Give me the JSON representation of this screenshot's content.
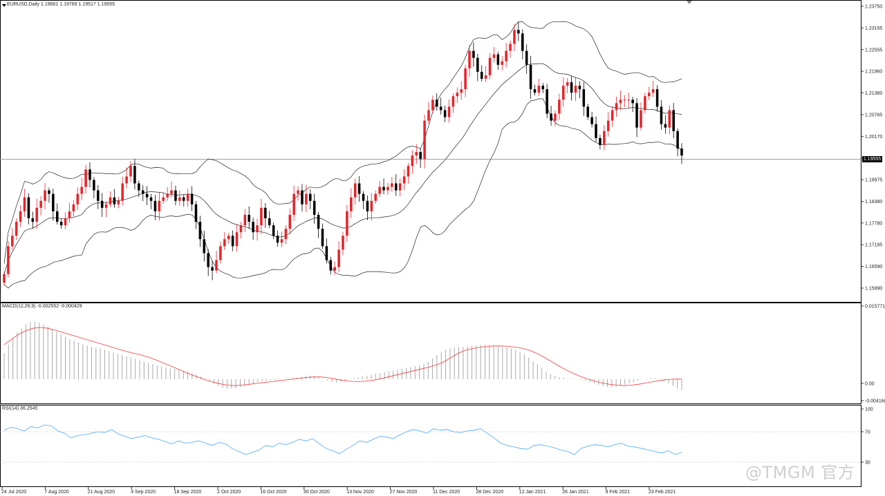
{
  "chart_data": {
    "type": "candlestick",
    "symbol_header": "EURUSD,Daily  1.19661 1.19769 1.19517 1.19555",
    "current_price": "1.19555",
    "price_axis_ticks": [
      "1.23750",
      "1.23155",
      "1.22555",
      "1.21960",
      "1.21360",
      "1.20765",
      "1.20170",
      "1.19575",
      "1.18975",
      "1.18380",
      "1.17780",
      "1.17185",
      "1.16590",
      "1.15990"
    ],
    "ylim": [
      1.157,
      1.239
    ],
    "date_labels": [
      "24 Jul 2020",
      "7 Aug 2020",
      "21 Aug 2020",
      "4 Sep 2020",
      "18 Sep 2020",
      "2 Oct 2020",
      "16 Oct 2020",
      "30 Oct 2020",
      "13 Nov 2020",
      "27 Nov 2020",
      "11 Dec 2020",
      "28 Dec 2020",
      "12 Jan 2021",
      "26 Jan 2021",
      "9 Feb 2021",
      "23 Feb 2021"
    ],
    "close": [
      1.162,
      1.17,
      1.173,
      1.177,
      1.18,
      1.184,
      1.178,
      1.177,
      1.181,
      1.183,
      1.186,
      1.185,
      1.18,
      1.177,
      1.176,
      1.178,
      1.18,
      1.182,
      1.185,
      1.187,
      1.192,
      1.189,
      1.186,
      1.183,
      1.181,
      1.182,
      1.184,
      1.182,
      1.183,
      1.188,
      1.19,
      1.193,
      1.188,
      1.186,
      1.185,
      1.184,
      1.183,
      1.18,
      1.183,
      1.184,
      1.185,
      1.186,
      1.183,
      1.184,
      1.183,
      1.185,
      1.182,
      1.177,
      1.172,
      1.168,
      1.164,
      1.163,
      1.166,
      1.17,
      1.172,
      1.173,
      1.17,
      1.174,
      1.176,
      1.179,
      1.177,
      1.174,
      1.176,
      1.181,
      1.178,
      1.176,
      1.173,
      1.171,
      1.172,
      1.175,
      1.179,
      1.185,
      1.186,
      1.182,
      1.185,
      1.183,
      1.179,
      1.175,
      1.17,
      1.166,
      1.163,
      1.164,
      1.169,
      1.173,
      1.18,
      1.184,
      1.188,
      1.185,
      1.183,
      1.18,
      1.183,
      1.185,
      1.187,
      1.186,
      1.187,
      1.188,
      1.186,
      1.188,
      1.19,
      1.193,
      1.196,
      1.197,
      1.195,
      1.206,
      1.209,
      1.212,
      1.21,
      1.209,
      1.207,
      1.21,
      1.213,
      1.214,
      1.215,
      1.221,
      1.226,
      1.224,
      1.22,
      1.218,
      1.219,
      1.224,
      1.225,
      1.222,
      1.223,
      1.226,
      1.228,
      1.232,
      1.231,
      1.226,
      1.222,
      1.215,
      1.214,
      1.216,
      1.215,
      1.208,
      1.206,
      1.208,
      1.212,
      1.216,
      1.217,
      1.214,
      1.216,
      1.215,
      1.21,
      1.207,
      1.205,
      1.201,
      1.199,
      1.203,
      1.206,
      1.209,
      1.211,
      1.212,
      1.212,
      1.212,
      1.211,
      1.204,
      1.209,
      1.213,
      1.214,
      1.215,
      1.21,
      1.205,
      1.204,
      1.209,
      1.203,
      1.198,
      1.196
    ]
  },
  "macd": {
    "label": "MACD(12,26,9) -0.002552 -0.000429",
    "ticks": [
      "0.015771",
      "0.00",
      "-0.004168"
    ],
    "range": [
      -0.005,
      0.0168
    ],
    "hist": [
      0.006,
      0.008,
      0.0095,
      0.0108,
      0.0118,
      0.0128,
      0.0132,
      0.0133,
      0.0131,
      0.0127,
      0.0122,
      0.0116,
      0.011,
      0.0104,
      0.0098,
      0.0093,
      0.0089,
      0.0085,
      0.0081,
      0.0078,
      0.0075,
      0.0073,
      0.0071,
      0.0068,
      0.0065,
      0.0062,
      0.0059,
      0.0056,
      0.0053,
      0.005,
      0.0047,
      0.0044,
      0.0041,
      0.0038,
      0.0035,
      0.0032,
      0.0029,
      0.0027,
      0.0025,
      0.0023,
      0.0021,
      0.0019,
      0.0017,
      0.0014,
      0.001,
      0.0006,
      0.0002,
      -0.0004,
      -0.001,
      -0.0016,
      -0.002,
      -0.0022,
      -0.0022,
      -0.0021,
      -0.0019,
      -0.0016,
      -0.0013,
      -0.001,
      -0.0007,
      -0.0005,
      -0.0004,
      -0.0003,
      -0.0002,
      -0.0001,
      0.0,
      0.0001,
      0.0002,
      0.0004,
      0.0006,
      0.0007,
      0.0008,
      0.0007,
      0.0004,
      0.0,
      -0.0004,
      -0.0007,
      -0.0008,
      -0.0007,
      -0.0004,
      -0.0001,
      0.0002,
      0.0004,
      0.0006,
      0.0008,
      0.001,
      0.0012,
      0.0014,
      0.0016,
      0.0018,
      0.002,
      0.0022,
      0.0024,
      0.0026,
      0.0028,
      0.003,
      0.0032,
      0.0035,
      0.004,
      0.0048,
      0.0056,
      0.0063,
      0.0068,
      0.0071,
      0.0073,
      0.0074,
      0.0075,
      0.0076,
      0.0077,
      0.0078,
      0.0079,
      0.0079,
      0.0078,
      0.0077,
      0.0076,
      0.0075,
      0.0073,
      0.0071,
      0.0068,
      0.0064,
      0.0058,
      0.005,
      0.0042,
      0.0034,
      0.0026,
      0.0018,
      0.0012,
      0.0008,
      0.0005,
      0.0003,
      0.0002,
      0.0001,
      0.0,
      -0.0002,
      -0.0004,
      -0.0007,
      -0.001,
      -0.0013,
      -0.0016,
      -0.0018,
      -0.0019,
      -0.0018,
      -0.0016,
      -0.0013,
      -0.001,
      -0.0007,
      -0.0004,
      -0.0001,
      0.0001,
      0.0003,
      0.0002,
      -0.0001,
      -0.0005,
      -0.001,
      -0.0016,
      -0.0022,
      -0.0026
    ],
    "signal": [
      0.008,
      0.0092,
      0.0104,
      0.0112,
      0.0118,
      0.012,
      0.0118,
      0.0114,
      0.0109,
      0.0104,
      0.0099,
      0.0094,
      0.0089,
      0.0084,
      0.0079,
      0.0074,
      0.0069,
      0.0064,
      0.006,
      0.0056,
      0.0051,
      0.0045,
      0.0038,
      0.0031,
      0.0024,
      0.0017,
      0.001,
      0.0004,
      -0.0002,
      -0.0007,
      -0.0011,
      -0.0014,
      -0.0015,
      -0.0014,
      -0.0012,
      -0.001,
      -0.0008,
      -0.0006,
      -0.0004,
      -0.0002,
      0.0,
      0.0002,
      0.0004,
      0.0005,
      0.0005,
      0.0003,
      0.0,
      -0.0003,
      -0.0005,
      -0.0006,
      -0.0005,
      -0.0003,
      0.0,
      0.0004,
      0.0008,
      0.0012,
      0.0016,
      0.002,
      0.0024,
      0.0028,
      0.0033,
      0.004,
      0.005,
      0.006,
      0.0067,
      0.0071,
      0.0074,
      0.0076,
      0.0077,
      0.0077,
      0.0076,
      0.0074,
      0.0071,
      0.0066,
      0.0059,
      0.005,
      0.004,
      0.003,
      0.0021,
      0.0013,
      0.0006,
      0.0,
      -0.0005,
      -0.0009,
      -0.0012,
      -0.0014,
      -0.0015,
      -0.0014,
      -0.0012,
      -0.0009,
      -0.0006,
      -0.0003,
      -0.0001,
      0.0,
      0.0
    ]
  },
  "rsi": {
    "label": "RSI(14) 36.2545",
    "ticks": [
      "100",
      "70",
      "30"
    ],
    "values": [
      72,
      76,
      74,
      71,
      77,
      75,
      79,
      78,
      71,
      68,
      62,
      65,
      66,
      68,
      70,
      69,
      73,
      67,
      64,
      61,
      63,
      65,
      62,
      60,
      57,
      54,
      58,
      55,
      56,
      58,
      55,
      52,
      56,
      54,
      48,
      44,
      40,
      43,
      46,
      52,
      50,
      55,
      53,
      56,
      60,
      58,
      61,
      54,
      48,
      45,
      41,
      47,
      52,
      58,
      56,
      60,
      64,
      63,
      61,
      66,
      70,
      73,
      71,
      68,
      74,
      72,
      73,
      70,
      69,
      71,
      72,
      74,
      68,
      62,
      55,
      52,
      50,
      48,
      47,
      52,
      53,
      51,
      49,
      46,
      44,
      40,
      48,
      51,
      53,
      52,
      50,
      53,
      55,
      51,
      50,
      48,
      46,
      44,
      42,
      45,
      40,
      43
    ]
  },
  "watermark": "@TMGM 官方"
}
